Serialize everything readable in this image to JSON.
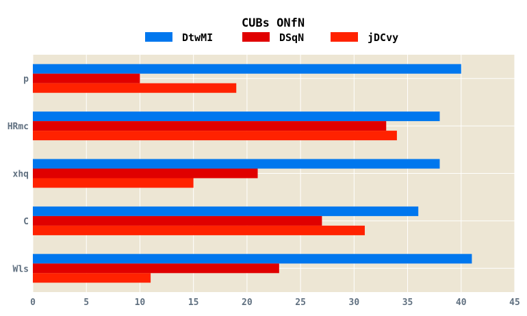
{
  "chart_data": {
    "type": "bar",
    "orientation": "horizontal",
    "title": "CUBs ONfN",
    "xlabel": "",
    "ylabel": "",
    "categories": [
      "p",
      "HRmc",
      "xhq",
      "C",
      "Wls"
    ],
    "series": [
      {
        "name": "DtwMI",
        "color": "#0077ee",
        "values": [
          40,
          38,
          38,
          36,
          41
        ]
      },
      {
        "name": "DSqN",
        "color": "#e00000",
        "values": [
          10,
          33,
          21,
          27,
          23
        ]
      },
      {
        "name": "jDCvy",
        "color": "#ff2200",
        "values": [
          19,
          34,
          15,
          31,
          11
        ]
      }
    ],
    "xlim": [
      0,
      45
    ],
    "xticks": [
      0,
      5,
      10,
      15,
      20,
      25,
      30,
      35,
      40,
      45
    ],
    "grid": true,
    "legend_position": "top-center",
    "background_color": "#ede6d4",
    "grid_color": "#ffffff",
    "tick_label_color": "#607080"
  }
}
